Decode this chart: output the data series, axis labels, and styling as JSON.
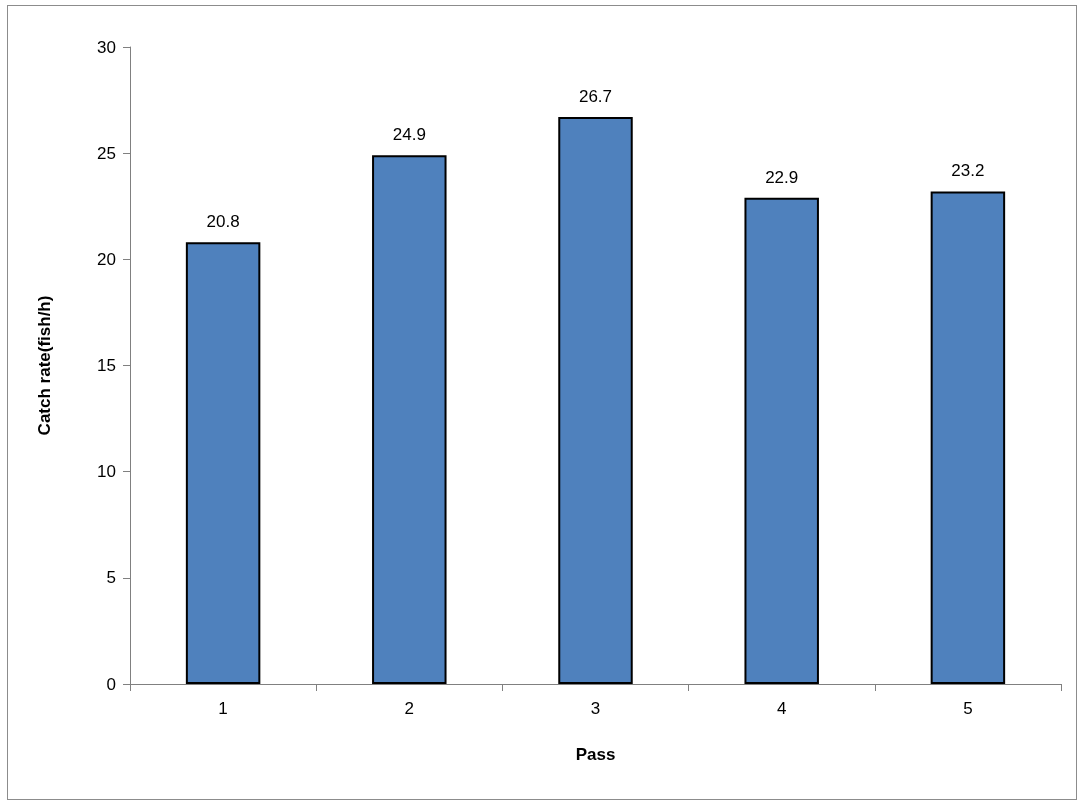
{
  "chart_data": {
    "type": "bar",
    "xlabel": "Pass",
    "ylabel": "Catch rate(fish/h)",
    "categories": [
      "1",
      "2",
      "3",
      "4",
      "5"
    ],
    "values": [
      20.8,
      24.9,
      26.7,
      22.9,
      23.2
    ],
    "color": "#4f81bd",
    "ylim": [
      0,
      30
    ],
    "yticks": [
      0,
      5,
      10,
      15,
      20,
      25,
      30
    ],
    "data_labels": true
  }
}
